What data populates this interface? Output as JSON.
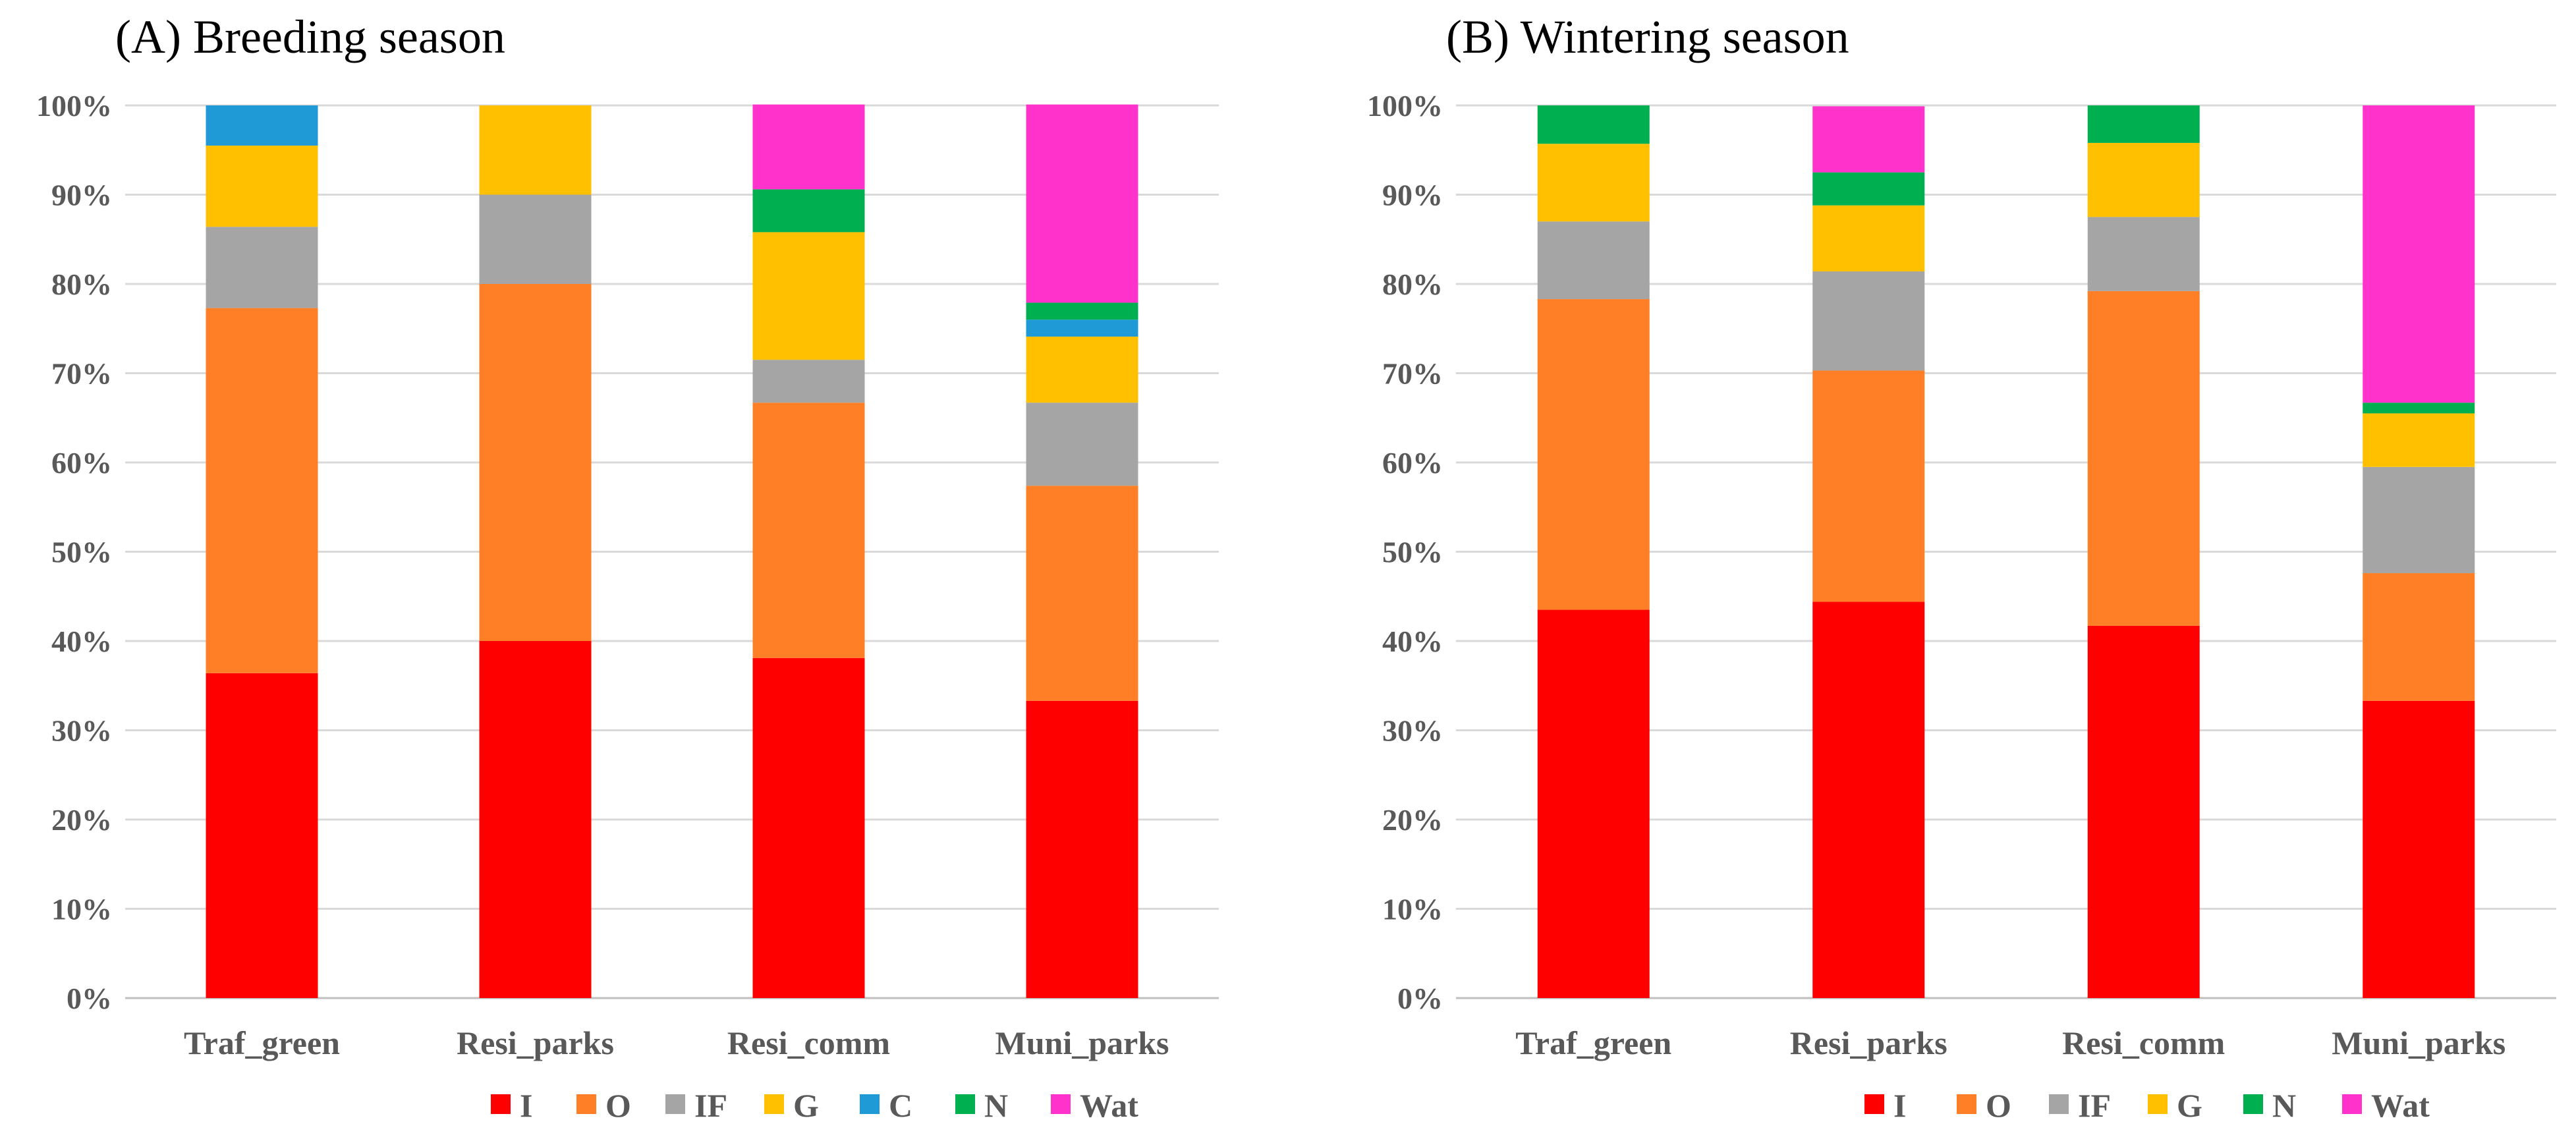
{
  "chart_data": [
    {
      "type": "stacked-bar",
      "title": "(A) Breeding season",
      "categories": [
        "Traf_green",
        "Resi_parks",
        "Resi_comm",
        "Muni_parks"
      ],
      "y_ticks": [
        "0%",
        "10%",
        "20%",
        "30%",
        "40%",
        "50%",
        "60%",
        "70%",
        "80%",
        "90%",
        "100%"
      ],
      "ylim": [
        0,
        100
      ],
      "legend_position": "bottom",
      "series": [
        {
          "name": "I",
          "color": "#ff0000",
          "values": [
            36.4,
            40.0,
            38.1,
            33.3
          ]
        },
        {
          "name": "O",
          "color": "#ff7f27",
          "values": [
            40.9,
            40.0,
            28.6,
            24.1
          ]
        },
        {
          "name": "IF",
          "color": "#a5a5a5",
          "values": [
            9.1,
            10.0,
            4.8,
            9.3
          ]
        },
        {
          "name": "G",
          "color": "#ffc000",
          "values": [
            9.1,
            10.0,
            14.3,
            7.4
          ]
        },
        {
          "name": "C",
          "color": "#1f9ad6",
          "values": [
            4.5,
            0,
            0,
            1.9
          ]
        },
        {
          "name": "N",
          "color": "#00b050",
          "values": [
            0,
            0,
            4.8,
            1.9
          ]
        },
        {
          "name": "Wat",
          "color": "#ff33cc",
          "values": [
            0,
            0,
            9.5,
            22.2
          ]
        }
      ]
    },
    {
      "type": "stacked-bar",
      "title": "(B) Wintering season",
      "categories": [
        "Traf_green",
        "Resi_parks",
        "Resi_comm",
        "Muni_parks"
      ],
      "y_ticks": [
        "0%",
        "10%",
        "20%",
        "30%",
        "40%",
        "50%",
        "60%",
        "70%",
        "80%",
        "90%",
        "100%"
      ],
      "ylim": [
        0,
        100
      ],
      "legend_position": "bottom",
      "series": [
        {
          "name": "I",
          "color": "#ff0000",
          "values": [
            43.5,
            44.4,
            41.7,
            33.3
          ]
        },
        {
          "name": "O",
          "color": "#ff7f27",
          "values": [
            34.8,
            25.9,
            37.5,
            14.3
          ]
        },
        {
          "name": "IF",
          "color": "#a5a5a5",
          "values": [
            8.7,
            11.1,
            8.3,
            11.9
          ]
        },
        {
          "name": "G",
          "color": "#ffc000",
          "values": [
            8.7,
            7.4,
            8.3,
            6.0
          ]
        },
        {
          "name": "N",
          "color": "#00b050",
          "values": [
            4.3,
            3.7,
            4.2,
            1.2
          ]
        },
        {
          "name": "Wat",
          "color": "#ff33cc",
          "values": [
            0,
            7.4,
            0,
            33.3
          ]
        }
      ]
    }
  ]
}
